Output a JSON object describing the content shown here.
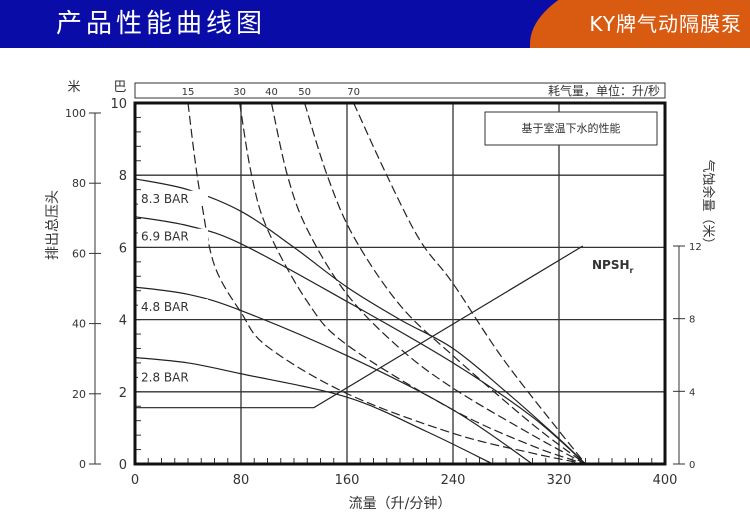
{
  "header": {
    "title": "产品性能曲线图",
    "brand": "KY牌气动隔膜泵",
    "colors": {
      "banner": "#0a0ca8",
      "brand_bg": "#d95b12"
    }
  },
  "chart_data": {
    "type": "line",
    "title": "",
    "note": "基于室温下水的性能",
    "xlabel": "流量（升/分钟）",
    "ylabel_left_m": "排出总压头",
    "unit_left_m": "米",
    "unit_left_bar": "巴",
    "ylabel_right": "气蚀余量（米）",
    "top_axis_label": "耗气量，单位：升/秒",
    "xlim": [
      0,
      400
    ],
    "ylim_bar": [
      0,
      10
    ],
    "ylim_m": [
      0,
      100
    ],
    "ylim_right_m": [
      0,
      12
    ],
    "grid": true,
    "x_ticks": [
      0,
      80,
      160,
      240,
      320,
      400
    ],
    "y_ticks_bar": [
      0,
      2,
      4,
      6,
      8,
      10
    ],
    "y_ticks_m": [
      0,
      20,
      40,
      60,
      80,
      100
    ],
    "y_ticks_right": [
      0,
      4,
      8,
      12
    ],
    "pressure_curves": [
      {
        "name": "8.3 BAR",
        "points": [
          [
            0,
            7.9
          ],
          [
            40,
            7.6
          ],
          [
            80,
            7.0
          ],
          [
            120,
            6.0
          ],
          [
            160,
            4.9
          ],
          [
            200,
            4.0
          ],
          [
            240,
            3.2
          ],
          [
            280,
            2.0
          ],
          [
            320,
            0.7
          ],
          [
            340,
            0
          ]
        ]
      },
      {
        "name": "6.9 BAR",
        "points": [
          [
            0,
            6.85
          ],
          [
            40,
            6.6
          ],
          [
            80,
            6.1
          ],
          [
            160,
            4.5
          ],
          [
            240,
            2.8
          ],
          [
            300,
            1.3
          ],
          [
            340,
            0
          ]
        ]
      },
      {
        "name": "4.8 BAR",
        "points": [
          [
            0,
            4.9
          ],
          [
            40,
            4.7
          ],
          [
            80,
            4.25
          ],
          [
            160,
            3.0
          ],
          [
            240,
            1.5
          ],
          [
            300,
            0
          ]
        ]
      },
      {
        "name": "2.8 BAR",
        "points": [
          [
            0,
            2.95
          ],
          [
            40,
            2.8
          ],
          [
            80,
            2.5
          ],
          [
            160,
            1.85
          ],
          [
            220,
            0.9
          ],
          [
            270,
            0
          ]
        ]
      }
    ],
    "air_consumption_curves": [
      {
        "name": "15",
        "points": [
          [
            40,
            10
          ],
          [
            45,
            8.5
          ],
          [
            50,
            7.3
          ],
          [
            60,
            5.5
          ],
          [
            80,
            4.2
          ],
          [
            100,
            3.25
          ],
          [
            160,
            1.95
          ],
          [
            240,
            0.85
          ],
          [
            300,
            0.3
          ],
          [
            340,
            0
          ]
        ]
      },
      {
        "name": "30",
        "points": [
          [
            79,
            10
          ],
          [
            88,
            8
          ],
          [
            100,
            6.5
          ],
          [
            130,
            4.5
          ],
          [
            160,
            3.3
          ],
          [
            240,
            1.5
          ],
          [
            300,
            0.5
          ],
          [
            340,
            0
          ]
        ]
      },
      {
        "name": "40",
        "points": [
          [
            103,
            10
          ],
          [
            115,
            8
          ],
          [
            130,
            6.5
          ],
          [
            160,
            4.7
          ],
          [
            200,
            3.2
          ],
          [
            240,
            2.1
          ],
          [
            300,
            0.8
          ],
          [
            340,
            0
          ]
        ]
      },
      {
        "name": "50",
        "points": [
          [
            128,
            10
          ],
          [
            145,
            8
          ],
          [
            165,
            6.3
          ],
          [
            200,
            4.4
          ],
          [
            240,
            3.0
          ],
          [
            300,
            1.1
          ],
          [
            340,
            0
          ]
        ]
      },
      {
        "name": "70",
        "points": [
          [
            165,
            10
          ],
          [
            190,
            8
          ],
          [
            215,
            6.2
          ],
          [
            240,
            5.0
          ],
          [
            280,
            2.8
          ],
          [
            340,
            0
          ]
        ]
      }
    ],
    "npshr": {
      "name": "NPSHr",
      "label_main": "NPSH",
      "label_sub": "r",
      "points_m": [
        [
          0,
          3.1
        ],
        [
          135,
          3.1
        ],
        [
          338,
          12
        ]
      ]
    }
  }
}
